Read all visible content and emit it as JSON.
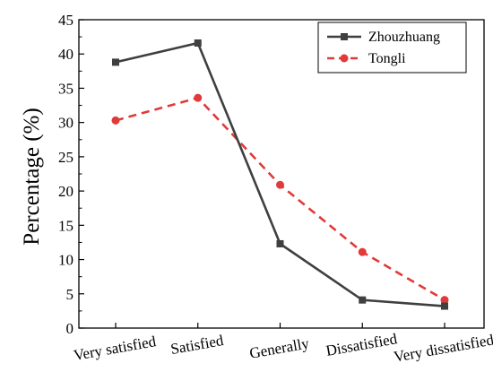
{
  "chart_data": {
    "type": "line",
    "title": "",
    "xlabel": "",
    "ylabel": "Percentage (%)",
    "ylim": [
      0,
      45
    ],
    "yticks": [
      "0",
      "5",
      "10",
      "15",
      "20",
      "25",
      "30",
      "35",
      "40",
      "45"
    ],
    "categories": [
      "Very satisfied",
      "Satisfied",
      "Generally",
      "Dissatisfied",
      "Very dissatisfied"
    ],
    "grid": false,
    "legend_position": "top-right",
    "series": [
      {
        "name": "Zhouzhuang",
        "values": [
          38.8,
          41.6,
          12.3,
          4.1,
          3.2
        ],
        "color": "#3f3f3f",
        "line_style": "solid",
        "marker": "square"
      },
      {
        "name": "Tongli",
        "values": [
          30.3,
          33.6,
          20.9,
          11.1,
          4.1
        ],
        "color": "#e03a3a",
        "line_style": "dashed",
        "marker": "circle"
      }
    ]
  }
}
